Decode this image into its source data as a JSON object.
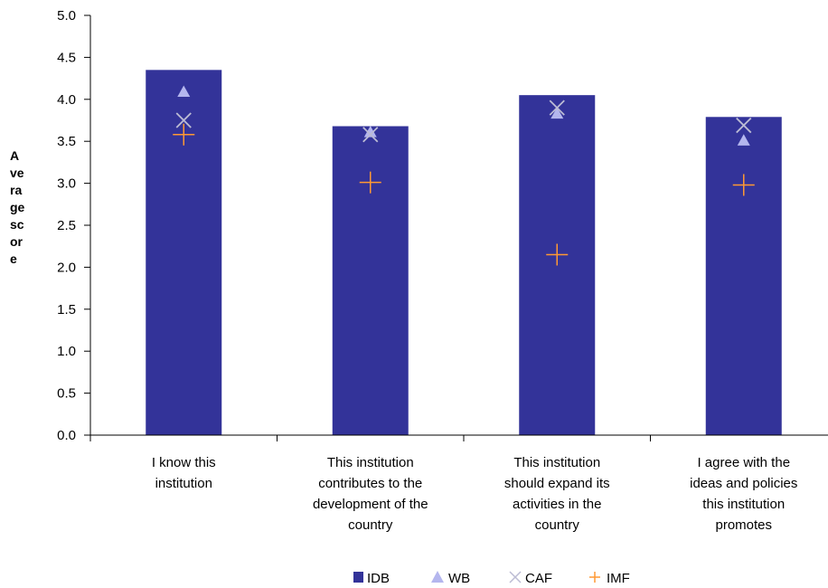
{
  "chart_data": {
    "type": "bar",
    "categories": [
      "I know this institution",
      "This institution contributes to the development of the country",
      "This institution should expand its activities in the country",
      "I agree with the ideas and policies this institution promotes"
    ],
    "category_label_lines": [
      [
        "I know this",
        "institution"
      ],
      [
        "This institution",
        "contributes to the",
        "development of the",
        "country"
      ],
      [
        "This institution",
        "should expand its",
        "activities in the",
        "country"
      ],
      [
        "I agree with the",
        "ideas and policies",
        "this institution",
        "promotes"
      ]
    ],
    "ylabel": "Average score",
    "ylabel_lines": [
      "A",
      "ve",
      "ra",
      "ge",
      "sc",
      "or",
      "e"
    ],
    "ylim": [
      0,
      5
    ],
    "yticks": [
      "0.0",
      "0.5",
      "1.0",
      "1.5",
      "2.0",
      "2.5",
      "3.0",
      "3.5",
      "4.0",
      "4.5",
      "5.0"
    ],
    "grid": false,
    "legend_position": "bottom",
    "series": [
      {
        "name": "IDB",
        "marker": "bar",
        "color": "#333399",
        "values": [
          4.35,
          3.68,
          4.05,
          3.79
        ]
      },
      {
        "name": "WB",
        "marker": "triangle",
        "color": "#b4b6ee",
        "values": [
          4.09,
          3.61,
          3.83,
          3.51
        ]
      },
      {
        "name": "CAF",
        "marker": "x",
        "color": "#bcbcd4",
        "values": [
          3.75,
          3.58,
          3.9,
          3.69
        ]
      },
      {
        "name": "IMF",
        "marker": "plus",
        "color": "#ff9933",
        "values": [
          3.58,
          3.01,
          2.15,
          2.98
        ]
      }
    ]
  }
}
